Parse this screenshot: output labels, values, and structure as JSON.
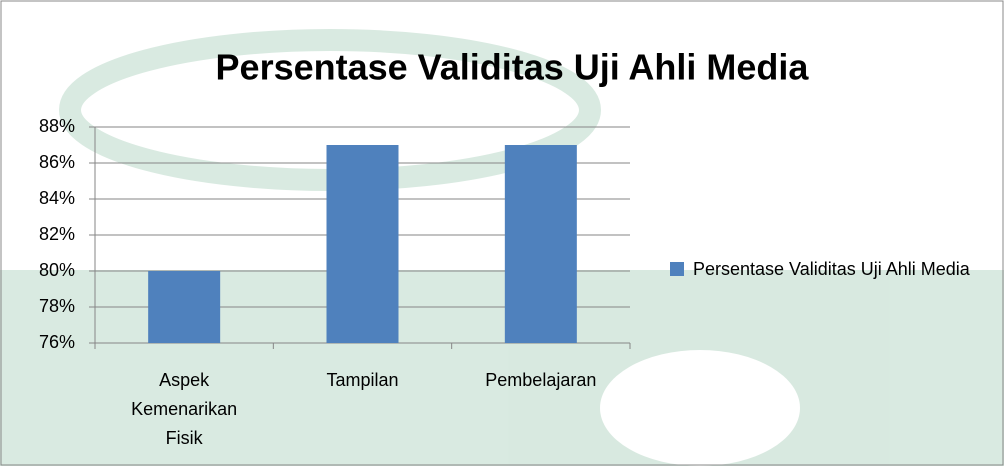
{
  "chart_data": {
    "type": "bar",
    "title": "Persentase Validitas Uji Ahli Media",
    "categories": [
      "Aspek Kemenarikan Fisik",
      "Tampilan",
      "Pembelajaran"
    ],
    "series": [
      {
        "name": "Persentase Validitas Uji Ahli Media",
        "color": "#4f81bd",
        "values": [
          80,
          87,
          87
        ]
      }
    ],
    "ylim": [
      76,
      88
    ],
    "yticks": [
      {
        "value": 76,
        "label": "76%"
      },
      {
        "value": 78,
        "label": "78%"
      },
      {
        "value": 80,
        "label": "80%"
      },
      {
        "value": 82,
        "label": "82%"
      },
      {
        "value": 84,
        "label": "84%"
      },
      {
        "value": 86,
        "label": "86%"
      },
      {
        "value": 88,
        "label": "88%"
      }
    ],
    "grid": true,
    "legend": "right"
  }
}
